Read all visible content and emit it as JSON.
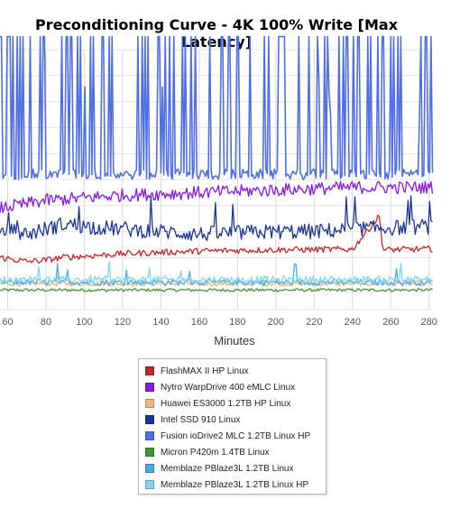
{
  "chart_data": {
    "type": "line",
    "title": "Preconditioning Curve - 4K 100% Write [Max Latency]",
    "xlabel": "Minutes",
    "ylabel": "",
    "xlim": [
      56,
      282
    ],
    "ylim": [
      0,
      100
    ],
    "x_ticks": [
      60,
      80,
      100,
      120,
      140,
      160,
      180,
      200,
      220,
      240,
      260,
      280
    ],
    "grid": true,
    "legend_position": "bottom",
    "series": [
      {
        "name": "FlashMAX II HP Linux",
        "color": "#c0282e",
        "base": 20,
        "noise": 1.2,
        "points": [
          [
            56,
            20
          ],
          [
            70,
            18.5
          ],
          [
            80,
            19
          ],
          [
            90,
            20.2
          ],
          [
            100,
            20.5
          ],
          [
            110,
            21
          ],
          [
            120,
            21.5
          ],
          [
            140,
            22
          ],
          [
            160,
            22.5
          ],
          [
            200,
            23
          ],
          [
            240,
            23.2
          ],
          [
            254,
            36
          ],
          [
            256,
            23
          ],
          [
            282,
            23.3
          ]
        ]
      },
      {
        "name": "Nytro WarpDrive 400 eMLC Linux",
        "color": "#8b16e8",
        "base": 44,
        "noise": 2.5,
        "points": [
          [
            56,
            39
          ],
          [
            80,
            42
          ],
          [
            100,
            43
          ],
          [
            120,
            44
          ],
          [
            160,
            45
          ],
          [
            200,
            46
          ],
          [
            240,
            47
          ],
          [
            282,
            47
          ]
        ]
      },
      {
        "name": "Huawei ES3000 1.2TB HP Linux",
        "color": "#f5b57d",
        "base": 10,
        "noise": 1.0,
        "points": [
          [
            56,
            10
          ],
          [
            282,
            10
          ]
        ]
      },
      {
        "name": "Intel SSD 910 Linux",
        "color": "#1d3597",
        "base": 31,
        "noise": 3.0,
        "points": [
          [
            56,
            31
          ],
          [
            70,
            29
          ],
          [
            90,
            33
          ],
          [
            100,
            32
          ],
          [
            140,
            30
          ],
          [
            160,
            29
          ],
          [
            200,
            30
          ],
          [
            220,
            30
          ],
          [
            240,
            31
          ],
          [
            282,
            32
          ]
        ]
      },
      {
        "name": "Fusion ioDrive2 MLC 1.2TB Linux HP",
        "color": "#4f6fe6",
        "base": 52,
        "noise": 2.0,
        "points": [
          [
            56,
            52
          ],
          [
            282,
            52
          ]
        ]
      },
      {
        "name": "Micron P420m 1.4TB Linux",
        "color": "#3f9a2c",
        "base": 7.5,
        "noise": 0.6,
        "points": [
          [
            56,
            7.5
          ],
          [
            282,
            7.5
          ]
        ]
      },
      {
        "name": "Memblaze PBlaze3L 1.2TB Linux",
        "color": "#48a9e6",
        "base": 10.5,
        "noise": 1.2,
        "points": [
          [
            56,
            10.5
          ],
          [
            282,
            10.5
          ]
        ]
      },
      {
        "name": "Memblaze PBlaze3L 1.2TB Linux HP",
        "color": "#7fd6f5",
        "base": 11.5,
        "noise": 1.4,
        "points": [
          [
            56,
            11.5
          ],
          [
            282,
            11.5
          ]
        ]
      }
    ]
  }
}
